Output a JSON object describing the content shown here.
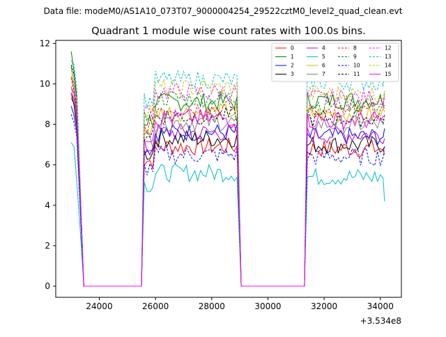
{
  "suptitle": "Data file: modeM0/AS1A10_073T07_9000004254_29522cztM0_level2_quad_clean.evt",
  "chart_data": {
    "type": "line",
    "title": "Quadrant 1 module wise count rates with 100.0s bins.",
    "xlabel": "",
    "ylabel": "",
    "x_offset_label": "+3.534e8",
    "xlim": [
      22450,
      34750
    ],
    "ylim": [
      -0.55,
      12.15
    ],
    "xticks": [
      24000,
      26000,
      28000,
      30000,
      32000,
      34000
    ],
    "xtick_labels": [
      "24000",
      "26000",
      "28000",
      "30000",
      "32000",
      "34000"
    ],
    "yticks": [
      0,
      2,
      4,
      6,
      8,
      10,
      12
    ],
    "ytick_labels": [
      "0",
      "2",
      "4",
      "6",
      "8",
      "10",
      "12"
    ],
    "grid": false,
    "legend_position": "top-right",
    "legend_columns": 4,
    "segments": [
      {
        "start": 23000,
        "end": 23300,
        "gap_after_end": 23450
      },
      {
        "start": 25500,
        "end": 28900,
        "gap_start": 23450,
        "gap_after_end": 29050
      },
      {
        "start": 31300,
        "end": 34150,
        "gap_start": 29050
      }
    ],
    "series": [
      {
        "name": "0",
        "color": "#ff0000",
        "dash": "solid",
        "level1": [
          9.3,
          9.0,
          8.2
        ],
        "level2": 6.9,
        "level3": 6.8,
        "end": 6.5
      },
      {
        "name": "1",
        "color": "#008000",
        "dash": "solid",
        "level1": [
          11.5,
          10.6,
          9.3
        ],
        "level2": 9.1,
        "level3": 9.2,
        "end": 8.8
      },
      {
        "name": "2",
        "color": "#0000ff",
        "dash": "solid",
        "level1": [
          9.0,
          8.6,
          7.6
        ],
        "level2": 7.6,
        "level3": 7.4,
        "end": 7.8
      },
      {
        "name": "3",
        "color": "#000000",
        "dash": "solid",
        "level1": [
          9.4,
          8.9,
          8.0
        ],
        "level2": 7.3,
        "level3": 7.0,
        "end": 6.9
      },
      {
        "name": "4",
        "color": "#bf00bf",
        "dash": "solid",
        "level1": [
          9.6,
          9.2,
          8.4
        ],
        "level2": 7.6,
        "level3": 7.5,
        "end": 7.3
      },
      {
        "name": "5",
        "color": "#00bfbf",
        "dash": "solid",
        "level1": [
          7.1,
          6.9,
          5.3
        ],
        "level2": 5.6,
        "level3": 5.4,
        "end": 4.2
      },
      {
        "name": "6",
        "color": "#bfbf00",
        "dash": "solid",
        "level1": [
          10.4,
          9.6,
          8.8
        ],
        "level2": 8.6,
        "level3": 8.5,
        "end": 8.6
      },
      {
        "name": "7",
        "color": "#808080",
        "dash": "solid",
        "level1": [
          10.0,
          9.3,
          8.4
        ],
        "level2": 8.1,
        "level3": 8.0,
        "end": 8.2
      },
      {
        "name": "8",
        "color": "#ff0000",
        "dash": "dashed",
        "level1": [
          10.2,
          9.5,
          8.7
        ],
        "level2": 8.8,
        "level3": 8.6,
        "end": 8.9
      },
      {
        "name": "9",
        "color": "#008000",
        "dash": "dashed",
        "level1": [
          10.7,
          10.0,
          9.1
        ],
        "level2": 9.3,
        "level3": 9.0,
        "end": 9.6
      },
      {
        "name": "10",
        "color": "#0000ff",
        "dash": "dashed",
        "level1": [
          8.4,
          8.0,
          7.3
        ],
        "level2": 6.5,
        "level3": 6.4,
        "end": 6.9
      },
      {
        "name": "11",
        "color": "#000000",
        "dash": "dashed",
        "level1": [
          11.0,
          10.3,
          9.2
        ],
        "level2": 8.4,
        "level3": 8.3,
        "end": 8.5
      },
      {
        "name": "12",
        "color": "#ff00ff",
        "dash": "dashed",
        "level1": [
          10.3,
          9.8,
          8.9
        ],
        "level2": 9.6,
        "level3": 9.3,
        "end": 9.4
      },
      {
        "name": "13",
        "color": "#00bfbf",
        "dash": "dashed",
        "level1": [
          11.2,
          10.9,
          9.9
        ],
        "level2": 10.2,
        "level3": 10.1,
        "end": 10.4
      },
      {
        "name": "14",
        "color": "#bfbf00",
        "dash": "dashed",
        "level1": [
          10.6,
          10.1,
          9.3
        ],
        "level2": 9.8,
        "level3": 9.5,
        "end": 9.7
      },
      {
        "name": "15",
        "color": "#ff00ff",
        "dash": "solid",
        "level1": [
          9.8,
          9.4,
          8.6
        ],
        "level2": 8.3,
        "level3": 8.2,
        "end": 8.4
      }
    ]
  }
}
